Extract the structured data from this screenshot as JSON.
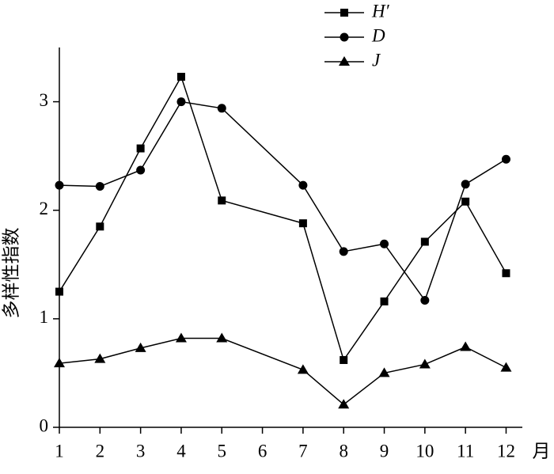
{
  "chart_data": {
    "type": "line",
    "x_label": "月",
    "y_label": "多样性指数",
    "x": [
      1,
      2,
      3,
      4,
      5,
      7,
      8,
      9,
      10,
      11,
      12
    ],
    "series": [
      {
        "name": "H′",
        "marker": "square",
        "color": "#000000",
        "values": [
          1.25,
          1.85,
          2.57,
          3.23,
          2.09,
          1.88,
          0.62,
          1.16,
          1.71,
          2.08,
          1.42
        ]
      },
      {
        "name": "D",
        "marker": "circle",
        "color": "#000000",
        "values": [
          2.23,
          2.22,
          2.37,
          3.0,
          2.94,
          2.23,
          1.62,
          1.69,
          1.17,
          2.24,
          2.47
        ]
      },
      {
        "name": "J",
        "marker": "triangle",
        "color": "#000000",
        "values": [
          0.59,
          0.63,
          0.73,
          0.82,
          0.82,
          0.53,
          0.21,
          0.5,
          0.58,
          0.74,
          0.55
        ]
      }
    ],
    "xlim": [
      1,
      12.4
    ],
    "xticks": [
      1,
      2,
      3,
      4,
      5,
      6,
      7,
      8,
      9,
      10,
      11,
      12
    ],
    "ylim": [
      0,
      3.5
    ],
    "yticks": [
      0,
      1,
      2,
      3
    ],
    "grid": false,
    "legend": "top"
  }
}
